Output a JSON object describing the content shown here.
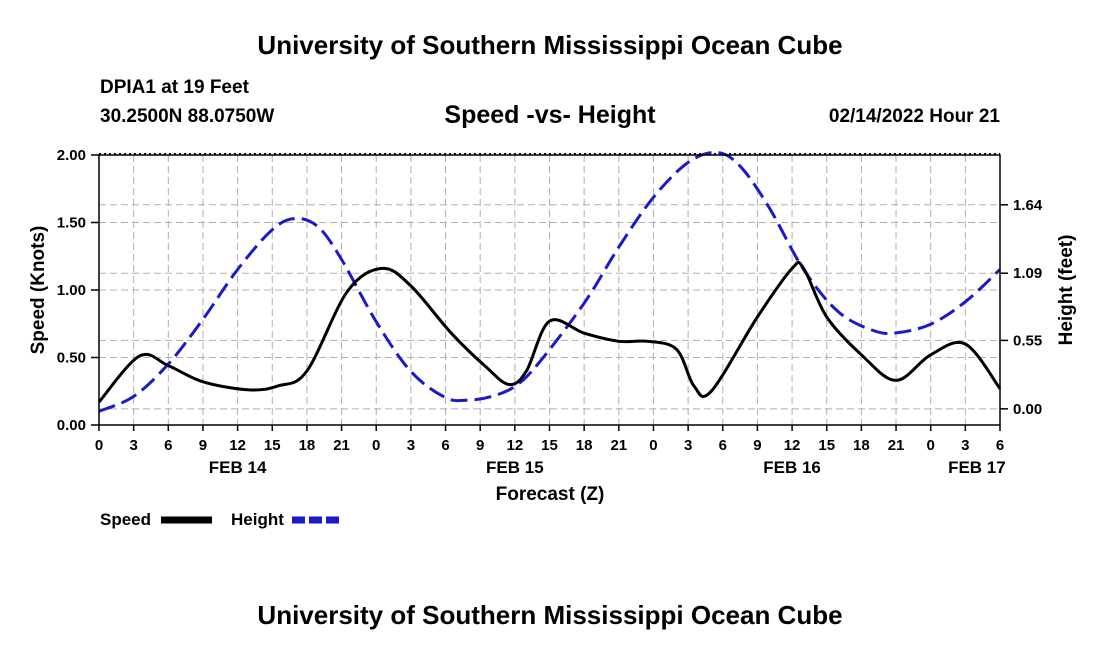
{
  "header": {
    "title": "University of Southern Mississippi Ocean Cube",
    "station": "DPIA1 at 19 Feet",
    "coords": "30.2500N  88.0750W",
    "plot_title": "Speed -vs- Height",
    "timestamp": "02/14/2022 Hour 21"
  },
  "footer": {
    "title": "University of Southern Mississippi Ocean Cube"
  },
  "colors": {
    "speed": "#000000",
    "height": "#1a1acc",
    "grid": "#b0b0b0"
  },
  "chart_data": {
    "type": "line",
    "title": "Speed -vs- Height",
    "xlabel": "Forecast (Z)",
    "ylabel_left": "Speed (Knots)",
    "ylabel_right": "Height (feet)",
    "x_hour_range": [
      0,
      78
    ],
    "x_tick_labels": [
      "0",
      "3",
      "6",
      "9",
      "12",
      "15",
      "18",
      "21",
      "0",
      "3",
      "6",
      "9",
      "12",
      "15",
      "18",
      "21",
      "0",
      "3",
      "6",
      "9",
      "12",
      "15",
      "18",
      "21",
      "0",
      "3",
      "6"
    ],
    "date_labels": [
      {
        "label": "FEB 14",
        "hour": 12
      },
      {
        "label": "FEB 15",
        "hour": 36
      },
      {
        "label": "FEB 16",
        "hour": 60
      },
      {
        "label": "FEB 17",
        "hour": 76
      }
    ],
    "y_left": {
      "range": [
        0,
        2
      ],
      "ticks": [
        "0.00",
        "0.50",
        "1.00",
        "1.50",
        "2.00"
      ],
      "tick_values": [
        0,
        0.5,
        1.0,
        1.5,
        2.0
      ]
    },
    "y_right": {
      "range": [
        -0.13,
        2.04
      ],
      "ticks": [
        "0.00",
        "0.55",
        "1.09",
        "1.64"
      ],
      "tick_values": [
        0,
        0.55,
        1.09,
        1.64
      ]
    },
    "grid": true,
    "series": [
      {
        "name": "Speed",
        "axis": "left",
        "style": "solid",
        "x": [
          0,
          3.5,
          6,
          9,
          13,
          15.5,
          18,
          21.5,
          24.5,
          27,
          30.5,
          33.5,
          35.5,
          37,
          39,
          42,
          45,
          47.5,
          50,
          51.5,
          53,
          57,
          60,
          61,
          63,
          66,
          69,
          72,
          75,
          78
        ],
        "values": [
          0.17,
          0.51,
          0.44,
          0.32,
          0.26,
          0.29,
          0.4,
          0.99,
          1.16,
          1.03,
          0.68,
          0.43,
          0.3,
          0.4,
          0.77,
          0.68,
          0.62,
          0.62,
          0.56,
          0.29,
          0.25,
          0.8,
          1.16,
          1.16,
          0.8,
          0.52,
          0.33,
          0.52,
          0.6,
          0.27
        ]
      },
      {
        "name": "Height",
        "axis": "right",
        "style": "dashed",
        "x": [
          0,
          3,
          6,
          9,
          12,
          15,
          17,
          19,
          21,
          24,
          27,
          30,
          32,
          34,
          36,
          38,
          42,
          45,
          48,
          51,
          53.5,
          55.5,
          58,
          61,
          64,
          67,
          69,
          72,
          75,
          78
        ],
        "values": [
          -0.02,
          0.1,
          0.36,
          0.72,
          1.12,
          1.44,
          1.53,
          1.46,
          1.2,
          0.7,
          0.3,
          0.09,
          0.07,
          0.1,
          0.18,
          0.36,
          0.85,
          1.3,
          1.7,
          1.98,
          2.06,
          1.95,
          1.62,
          1.12,
          0.78,
          0.63,
          0.61,
          0.68,
          0.86,
          1.12
        ]
      }
    ],
    "legend": [
      {
        "label": "Speed",
        "style": "solid"
      },
      {
        "label": "Height",
        "style": "dashed"
      }
    ]
  }
}
